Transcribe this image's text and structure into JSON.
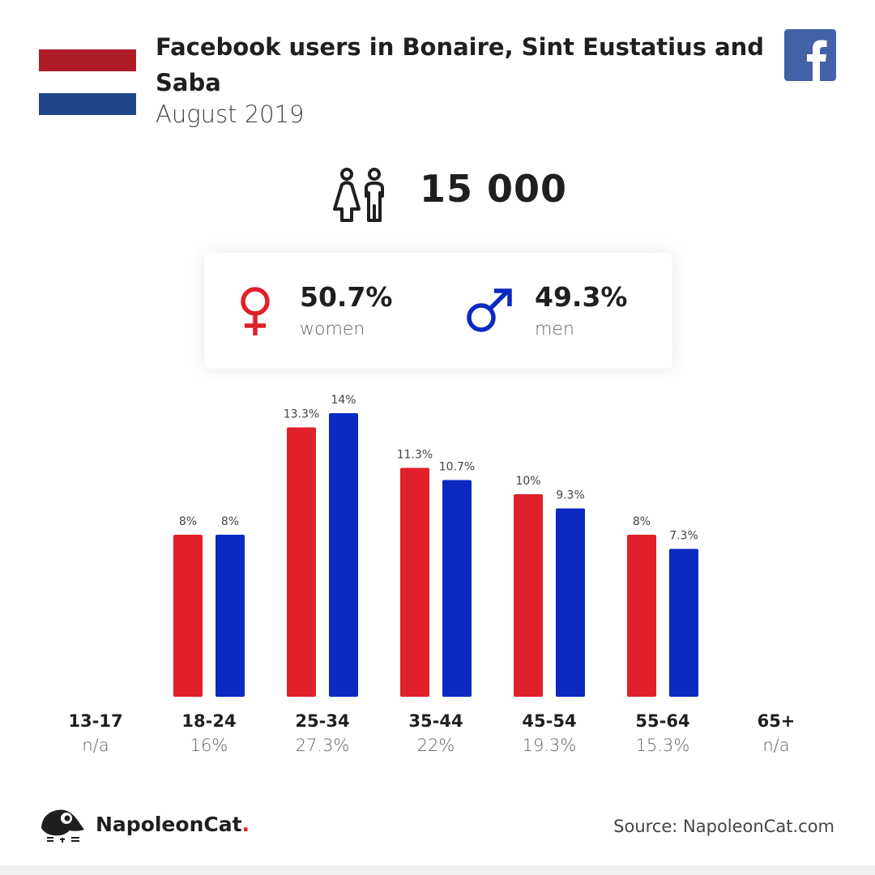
{
  "header": {
    "title": "Facebook users in Bonaire, Sint Eustatius and Saba",
    "subtitle": "August 2019",
    "flag_colors": [
      "#ae1c28",
      "#ffffff",
      "#21468b"
    ]
  },
  "total": {
    "value": "15 000",
    "icon": "users-icon"
  },
  "gender": {
    "women": {
      "percent": "50.7%",
      "label": "women",
      "icon": "female-symbol-icon",
      "color": "#e0202a"
    },
    "men": {
      "percent": "49.3%",
      "label": "men",
      "icon": "male-symbol-icon",
      "color": "#0c29c2"
    }
  },
  "colors": {
    "women": "#e0202a",
    "men": "#0c29c2",
    "facebook": "#4361a6"
  },
  "chart_data": {
    "type": "bar",
    "categories": [
      "13-17",
      "18-24",
      "25-34",
      "35-44",
      "45-54",
      "55-64",
      "65+"
    ],
    "category_totals": [
      "n/a",
      "16%",
      "27.3%",
      "22%",
      "19.3%",
      "15.3%",
      "n/a"
    ],
    "series": [
      {
        "name": "women",
        "values": [
          null,
          8,
          13.3,
          11.3,
          10,
          8,
          null
        ],
        "labels": [
          null,
          "8%",
          "13.3%",
          "11.3%",
          "10%",
          "8%",
          null
        ]
      },
      {
        "name": "men",
        "values": [
          null,
          8,
          14,
          10.7,
          9.3,
          7.3,
          null
        ],
        "labels": [
          null,
          "8%",
          "14%",
          "10.7%",
          "9.3%",
          "7.3%",
          null
        ]
      }
    ]
  },
  "footer": {
    "brand": "NapoleonCat",
    "brand_dot": ".",
    "source": "Source: NapoleonCat.com"
  }
}
